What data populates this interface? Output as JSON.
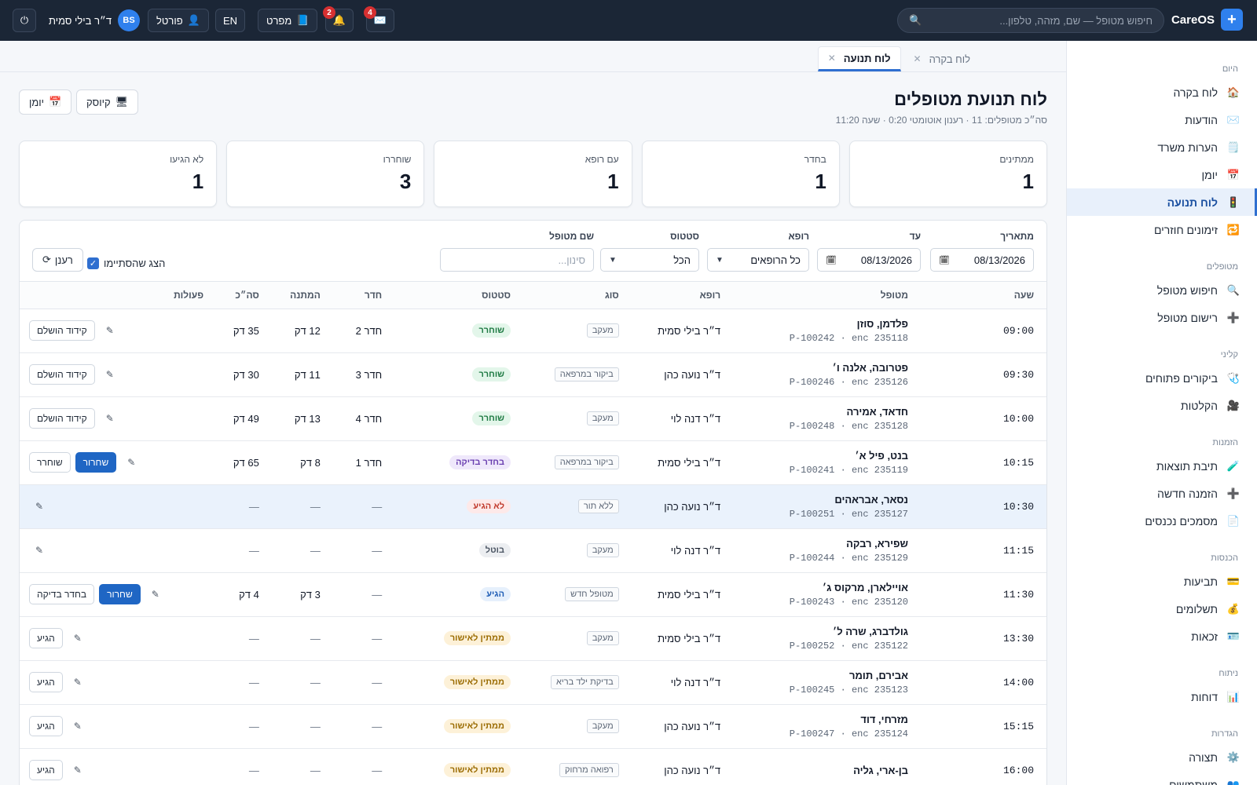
{
  "brand": {
    "name": "CareOS",
    "logo_glyph": "+"
  },
  "topbar": {
    "search_placeholder": "חיפוש מטופל — שם, מזהה, טלפון...",
    "messages_count": "4",
    "notifications_count": "2",
    "guide_label": "מפרט",
    "lang_label": "EN",
    "portal_label": "פורטל",
    "user_initials": "BS",
    "user_name": "ד״ר בילי סמית"
  },
  "sidebar": {
    "sections": [
      {
        "title": "היום",
        "items": [
          {
            "label": "לוח בקרה",
            "icon": "home-icon",
            "glyph": "🏠"
          },
          {
            "label": "הודעות",
            "icon": "mail-icon",
            "glyph": "✉️"
          },
          {
            "label": "הערות משרד",
            "icon": "note-icon",
            "glyph": "🗒️"
          },
          {
            "label": "יומן",
            "icon": "calendar-icon",
            "glyph": "📅"
          },
          {
            "label": "לוח תנועה",
            "icon": "traffic-light-icon",
            "glyph": "🚦",
            "active": true
          },
          {
            "label": "זימונים חוזרים",
            "icon": "repeat-icon",
            "glyph": "🔁"
          }
        ]
      },
      {
        "title": "מטופלים",
        "items": [
          {
            "label": "חיפוש מטופל",
            "icon": "search-icon",
            "glyph": "🔍"
          },
          {
            "label": "רישום מטופל",
            "icon": "plus-icon",
            "glyph": "➕"
          }
        ]
      },
      {
        "title": "קליני",
        "items": [
          {
            "label": "ביקורים פתוחים",
            "icon": "stethoscope-icon",
            "glyph": "🩺"
          },
          {
            "label": "הקלטות",
            "icon": "video-camera-icon",
            "glyph": "🎥"
          }
        ]
      },
      {
        "title": "הזמנות",
        "items": [
          {
            "label": "תיבת תוצאות",
            "icon": "test-tube-icon",
            "glyph": "🧪"
          },
          {
            "label": "הזמנה חדשה",
            "icon": "plus-icon",
            "glyph": "➕"
          },
          {
            "label": "מסמכים נכנסים",
            "icon": "document-icon",
            "glyph": "📄"
          }
        ]
      },
      {
        "title": "הכנסות",
        "items": [
          {
            "label": "תביעות",
            "icon": "credit-card-icon",
            "glyph": "💳"
          },
          {
            "label": "תשלומים",
            "icon": "money-bag-icon",
            "glyph": "💰"
          },
          {
            "label": "זכאות",
            "icon": "id-card-icon",
            "glyph": "🪪"
          }
        ]
      },
      {
        "title": "ניתוח",
        "items": [
          {
            "label": "דוחות",
            "icon": "bar-chart-icon",
            "glyph": "📊"
          }
        ]
      },
      {
        "title": "הגדרות",
        "items": [
          {
            "label": "תצורה",
            "icon": "gear-icon",
            "glyph": "⚙️"
          },
          {
            "label": "משתמשים",
            "icon": "users-icon",
            "glyph": "👥"
          }
        ]
      }
    ]
  },
  "tabs": [
    {
      "label": "לוח בקרה",
      "active": false
    },
    {
      "label": "לוח תנועה",
      "active": true
    }
  ],
  "page": {
    "title": "לוח תנועת מטופלים",
    "subtitle": "סה״כ מטופלים: 11 · רענון אוטומטי 0:20 · שעה 11:20",
    "kiosk_label": "קיוסק",
    "calendar_label": "יומן"
  },
  "stats": [
    {
      "label": "ממתינים",
      "value": "1"
    },
    {
      "label": "בחדר",
      "value": "1"
    },
    {
      "label": "עם רופא",
      "value": "1"
    },
    {
      "label": "שוחררו",
      "value": "3"
    },
    {
      "label": "לא הגיעו",
      "value": "1"
    }
  ],
  "filters": {
    "from_label": "מתאריך",
    "from_value": "08/13/2026",
    "to_label": "עד",
    "to_value": "08/13/2026",
    "doctor_label": "רופא",
    "doctor_value": "כל הרופאים",
    "status_label": "סטטוס",
    "status_value": "הכל",
    "patient_label": "שם מטופל",
    "patient_placeholder": "סינון...",
    "show_done_label": "הצג שהסתיימו",
    "show_done_checked": true,
    "refresh_label": "רענן"
  },
  "table": {
    "headers": [
      "שעה",
      "מטופל",
      "רופא",
      "סוג",
      "סטטוס",
      "חדר",
      "המתנה",
      "סה״כ",
      "פעולות"
    ],
    "rows": [
      {
        "time": "09:00",
        "name": "פלדמן, סוזן",
        "meta": "P-100242 · enc 235118",
        "doctor": "ד״ר בילי סמית",
        "type": "מעקב",
        "status": "שוחרר",
        "status_class": "st-discharged",
        "room": "חדר 2",
        "wait": "12 דק",
        "total": "35 דק",
        "actions": [
          "קידוד הושלם"
        ],
        "primary": ""
      },
      {
        "time": "09:30",
        "name": "פטרובה, אלנה ו׳",
        "meta": "P-100246 · enc 235126",
        "doctor": "ד״ר נועה כהן",
        "type": "ביקור במרפאה",
        "status": "שוחרר",
        "status_class": "st-discharged",
        "room": "חדר 3",
        "wait": "11 דק",
        "total": "30 דק",
        "actions": [
          "קידוד הושלם"
        ],
        "primary": ""
      },
      {
        "time": "10:00",
        "name": "חדאד, אמירה",
        "meta": "P-100248 · enc 235128",
        "doctor": "ד״ר דנה לוי",
        "type": "מעקב",
        "status": "שוחרר",
        "status_class": "st-discharged",
        "room": "חדר 4",
        "wait": "13 דק",
        "total": "49 דק",
        "actions": [
          "קידוד הושלם"
        ],
        "primary": ""
      },
      {
        "time": "10:15",
        "name": "בנט, פיל א׳",
        "meta": "P-100241 · enc 235119",
        "doctor": "ד״ר בילי סמית",
        "type": "ביקור במרפאה",
        "status": "בחדר בדיקה",
        "status_class": "st-exam",
        "room": "חדר 1",
        "wait": "8 דק",
        "total": "65 דק",
        "actions": [
          "שוחרר"
        ],
        "primary": "שחרור"
      },
      {
        "time": "10:30",
        "name": "נסאר, אבראהים",
        "meta": "P-100251 · enc 235127",
        "doctor": "ד״ר נועה כהן",
        "type": "ללא תור",
        "status": "לא הגיע",
        "status_class": "st-noshow",
        "room": "—",
        "wait": "—",
        "total": "—",
        "actions": [],
        "primary": "",
        "highlight": true
      },
      {
        "time": "11:15",
        "name": "שפירא, רבקה",
        "meta": "P-100244 · enc 235129",
        "doctor": "ד״ר דנה לוי",
        "type": "מעקב",
        "status": "בוטל",
        "status_class": "st-cancel",
        "room": "—",
        "wait": "—",
        "total": "—",
        "actions": [],
        "primary": ""
      },
      {
        "time": "11:30",
        "name": "אויילארן, מרקוס ג׳",
        "meta": "P-100243 · enc 235120",
        "doctor": "ד״ר בילי סמית",
        "type": "מטופל חדש",
        "status": "הגיע",
        "status_class": "st-arrived",
        "room": "—",
        "wait": "3 דק",
        "total": "4 דק",
        "actions": [
          "בחדר בדיקה"
        ],
        "primary": "שחרור"
      },
      {
        "time": "13:30",
        "name": "גולדברג, שרה ל׳",
        "meta": "P-100252 · enc 235122",
        "doctor": "ד״ר בילי סמית",
        "type": "מעקב",
        "status": "ממתין לאישור",
        "status_class": "st-pending",
        "room": "—",
        "wait": "—",
        "total": "—",
        "actions": [
          "הגיע"
        ],
        "primary": ""
      },
      {
        "time": "14:00",
        "name": "אבירם, תומר",
        "meta": "P-100245 · enc 235123",
        "doctor": "ד״ר דנה לוי",
        "type": "בדיקת ילד בריא",
        "status": "ממתין לאישור",
        "status_class": "st-pending",
        "room": "—",
        "wait": "—",
        "total": "—",
        "actions": [
          "הגיע"
        ],
        "primary": ""
      },
      {
        "time": "15:15",
        "name": "מזרחי, דוד",
        "meta": "P-100247 · enc 235124",
        "doctor": "ד״ר נועה כהן",
        "type": "מעקב",
        "status": "ממתין לאישור",
        "status_class": "st-pending",
        "room": "—",
        "wait": "—",
        "total": "—",
        "actions": [
          "הגיע"
        ],
        "primary": ""
      },
      {
        "time": "16:00",
        "name": "בן-ארי, גליה",
        "meta": "",
        "doctor": "ד״ר נועה כהן",
        "type": "רפואה מרחוק",
        "status": "ממתין לאישור",
        "status_class": "st-pending",
        "room": "—",
        "wait": "—",
        "total": "—",
        "actions": [
          "הגיע"
        ],
        "primary": ""
      }
    ]
  },
  "colors": {
    "topbar": "#1b2636",
    "accent": "#2f6fd0",
    "badge": "#d63031"
  }
}
